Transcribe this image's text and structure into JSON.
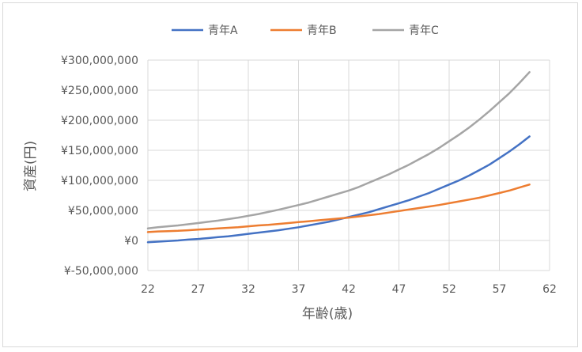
{
  "chart_data": {
    "type": "line",
    "title": "",
    "xlabel": "年齢(歳)",
    "ylabel": "資産(円)",
    "xlim": [
      22,
      62
    ],
    "xticks": [
      22,
      27,
      32,
      37,
      42,
      47,
      52,
      57,
      62
    ],
    "ylim": [
      -50000000,
      300000000
    ],
    "yticks": [
      -50000000,
      0,
      50000000,
      100000000,
      150000000,
      200000000,
      250000000,
      300000000
    ],
    "ytick_labels": [
      "¥-50,000,000",
      "¥0",
      "¥50,000,000",
      "¥100,000,000",
      "¥150,000,000",
      "¥200,000,000",
      "¥250,000,000",
      "¥300,000,000"
    ],
    "grid": true,
    "legend": "top-center",
    "series": [
      {
        "name": "青年A",
        "color": "#4472C4",
        "x": [
          22,
          23,
          24,
          25,
          26,
          27,
          28,
          29,
          30,
          31,
          32,
          33,
          34,
          35,
          36,
          37,
          38,
          39,
          40,
          41,
          42,
          43,
          44,
          45,
          46,
          47,
          48,
          49,
          50,
          51,
          52,
          53,
          54,
          55,
          56,
          57,
          58,
          59,
          60
        ],
        "values": [
          -3000000,
          -2000000,
          -1000000,
          0,
          1500000,
          2500000,
          4000000,
          5500000,
          7000000,
          9000000,
          11000000,
          13000000,
          15000000,
          17000000,
          19500000,
          22000000,
          25000000,
          28000000,
          31000000,
          35000000,
          39000000,
          43000000,
          47000000,
          52000000,
          57000000,
          62000000,
          67000000,
          73000000,
          79000000,
          86000000,
          93000000,
          100000000,
          108000000,
          117000000,
          126000000,
          137000000,
          148000000,
          160000000,
          173000000
        ]
      },
      {
        "name": "青年B",
        "color": "#ED7D31",
        "x": [
          22,
          23,
          24,
          25,
          26,
          27,
          28,
          29,
          30,
          31,
          32,
          33,
          34,
          35,
          36,
          37,
          38,
          39,
          40,
          41,
          42,
          43,
          44,
          45,
          46,
          47,
          48,
          49,
          50,
          51,
          52,
          53,
          54,
          55,
          56,
          57,
          58,
          59,
          60
        ],
        "values": [
          14000000,
          15000000,
          15500000,
          16000000,
          17000000,
          18000000,
          19000000,
          20000000,
          21000000,
          22000000,
          23500000,
          25000000,
          26000000,
          27500000,
          29000000,
          30500000,
          32000000,
          33500000,
          35000000,
          36500000,
          38000000,
          40000000,
          42000000,
          44000000,
          46500000,
          49000000,
          51500000,
          54000000,
          56500000,
          59000000,
          62000000,
          65000000,
          68000000,
          71000000,
          75000000,
          79000000,
          83000000,
          88000000,
          93000000
        ]
      },
      {
        "name": "青年C",
        "color": "#A5A5A5",
        "x": [
          22,
          23,
          24,
          25,
          26,
          27,
          28,
          29,
          30,
          31,
          32,
          33,
          34,
          35,
          36,
          37,
          38,
          39,
          40,
          41,
          42,
          43,
          44,
          45,
          46,
          47,
          48,
          49,
          50,
          51,
          52,
          53,
          54,
          55,
          56,
          57,
          58,
          59,
          60
        ],
        "values": [
          20000000,
          22000000,
          23500000,
          25000000,
          27000000,
          29000000,
          31000000,
          33000000,
          35500000,
          38000000,
          41000000,
          44000000,
          47500000,
          51000000,
          55000000,
          59000000,
          63000000,
          68000000,
          73000000,
          78000000,
          83000000,
          89000000,
          96000000,
          103000000,
          110000000,
          118000000,
          126000000,
          135000000,
          144000000,
          154000000,
          165000000,
          176000000,
          188000000,
          201000000,
          215000000,
          230000000,
          245000000,
          262000000,
          280000000
        ]
      }
    ]
  }
}
